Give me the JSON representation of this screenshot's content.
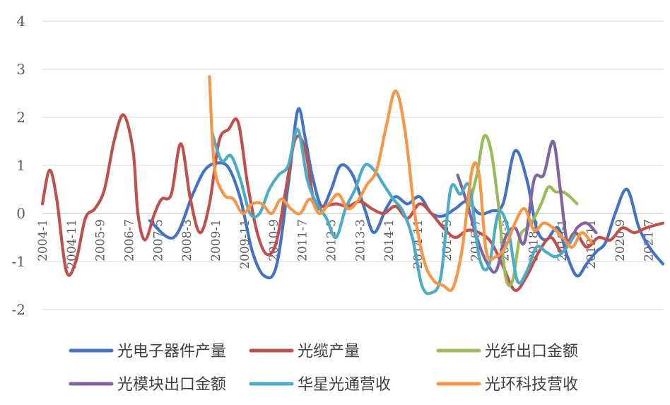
{
  "chart_data": {
    "type": "line",
    "title": "",
    "xlabel": "",
    "ylabel": "",
    "ylim": [
      -2,
      4
    ],
    "yticks": [
      -2,
      -1,
      0,
      1,
      2,
      3,
      4
    ],
    "grid": "horizontal",
    "legend_position": "bottom",
    "x_tick_labels": [
      "2004-1",
      "2004-11",
      "2005-9",
      "2006-7",
      "2007-5",
      "2008-3",
      "2009-1",
      "2009-11",
      "2010-9",
      "2011-7",
      "2012-5",
      "2013-3",
      "2014-1",
      "2014-11",
      "2015-9",
      "2016-7",
      "2017-5",
      "2018-3",
      "2019-1",
      "2019-11",
      "2020-9",
      "2021-7"
    ],
    "series": [
      {
        "name": "光电子器件产量",
        "color": "#4472c4",
        "points": [
          [
            4.5,
            -0.15
          ],
          [
            5.5,
            -0.5
          ],
          [
            6.3,
            0.4
          ],
          [
            6.8,
            0.9
          ],
          [
            7.3,
            1.05
          ],
          [
            7.8,
            0.95
          ],
          [
            8.3,
            0.3
          ],
          [
            8.8,
            -0.8
          ],
          [
            9.3,
            -1.3
          ],
          [
            9.8,
            -1.1
          ],
          [
            10.3,
            0.6
          ],
          [
            10.7,
            2.15
          ],
          [
            11,
            1.6
          ],
          [
            11.3,
            0.8
          ],
          [
            11.7,
            0.15
          ],
          [
            12.1,
            0.5
          ],
          [
            12.5,
            1.0
          ],
          [
            13.0,
            0.8
          ],
          [
            13.5,
            0.1
          ],
          [
            13.9,
            -0.4
          ],
          [
            14.4,
            0.1
          ],
          [
            14.8,
            0.35
          ],
          [
            15.3,
            0.2
          ],
          [
            15.8,
            0.35
          ],
          [
            16.3,
            0.0
          ],
          [
            16.8,
            -0.05
          ],
          [
            17.3,
            0.1
          ],
          [
            17.8,
            0.25
          ],
          [
            18.3,
            0.0
          ],
          [
            18.8,
            0.05
          ],
          [
            19.3,
            0.2
          ],
          [
            19.8,
            1.3
          ],
          [
            20.3,
            0.7
          ],
          [
            20.7,
            -0.3
          ],
          [
            21.1,
            -0.55
          ],
          [
            21.6,
            -0.3
          ],
          [
            22.0,
            -0.9
          ],
          [
            22.4,
            -1.3
          ],
          [
            22.8,
            -1.05
          ],
          [
            23.2,
            -0.8
          ],
          [
            23.6,
            -0.6
          ],
          [
            24.0,
            0.0
          ],
          [
            24.5,
            0.5
          ],
          [
            25.0,
            -0.3
          ],
          [
            25.5,
            -0.75
          ],
          [
            26.0,
            -1.05
          ]
        ]
      },
      {
        "name": "光缆产量",
        "color": "#c0504d",
        "points": [
          [
            0,
            0.2
          ],
          [
            0.3,
            0.9
          ],
          [
            0.6,
            0.3
          ],
          [
            1.0,
            -1.2
          ],
          [
            1.4,
            -1.0
          ],
          [
            1.8,
            -0.1
          ],
          [
            2.2,
            0.1
          ],
          [
            2.6,
            0.5
          ],
          [
            3.0,
            1.5
          ],
          [
            3.4,
            2.05
          ],
          [
            3.8,
            1.3
          ],
          [
            4.0,
            0.0
          ],
          [
            4.3,
            -0.55
          ],
          [
            4.7,
            0.0
          ],
          [
            5.0,
            0.3
          ],
          [
            5.4,
            0.4
          ],
          [
            5.8,
            1.45
          ],
          [
            6.2,
            0.3
          ],
          [
            6.6,
            -0.4
          ],
          [
            7.0,
            0.2
          ],
          [
            7.4,
            1.5
          ],
          [
            7.8,
            1.75
          ],
          [
            8.2,
            1.9
          ],
          [
            8.6,
            0.6
          ],
          [
            9.0,
            -0.4
          ],
          [
            9.4,
            -0.85
          ],
          [
            9.8,
            -0.6
          ],
          [
            10.2,
            0.5
          ],
          [
            10.6,
            1.55
          ],
          [
            11.0,
            1.35
          ],
          [
            11.4,
            0.2
          ],
          [
            11.8,
            0.15
          ],
          [
            12.3,
            0.2
          ],
          [
            12.8,
            0.15
          ],
          [
            13.3,
            0.25
          ],
          [
            13.8,
            0.1
          ],
          [
            14.3,
            0.0
          ],
          [
            14.8,
            0.15
          ],
          [
            15.3,
            -0.1
          ],
          [
            15.8,
            0.2
          ],
          [
            16.3,
            0.0
          ],
          [
            16.8,
            -0.3
          ],
          [
            17.3,
            -0.5
          ],
          [
            17.8,
            -0.35
          ],
          [
            18.3,
            -0.4
          ],
          [
            18.8,
            -0.6
          ],
          [
            19.3,
            -1.1
          ],
          [
            19.8,
            -1.6
          ],
          [
            20.3,
            -1.3
          ],
          [
            20.8,
            -0.8
          ],
          [
            21.3,
            -0.5
          ],
          [
            21.8,
            -0.8
          ],
          [
            22.3,
            -0.4
          ],
          [
            22.8,
            -0.7
          ],
          [
            23.3,
            -0.5
          ],
          [
            23.8,
            -0.55
          ],
          [
            24.3,
            -0.3
          ],
          [
            24.8,
            -0.4
          ],
          [
            25.3,
            -0.3
          ],
          [
            26.0,
            -0.2
          ]
        ]
      },
      {
        "name": "光纤出口金额",
        "color": "#9bbb59",
        "points": [
          [
            17.8,
            0.0
          ],
          [
            18.2,
            0.8
          ],
          [
            18.5,
            1.6
          ],
          [
            18.8,
            1.3
          ],
          [
            19.1,
            0.2
          ],
          [
            19.4,
            -1.3
          ],
          [
            19.7,
            -1.4
          ],
          [
            20.0,
            -0.5
          ],
          [
            20.3,
            -0.3
          ],
          [
            20.6,
            -0.1
          ],
          [
            20.9,
            0.2
          ],
          [
            21.2,
            0.55
          ],
          [
            21.5,
            0.45
          ],
          [
            21.8,
            0.45
          ],
          [
            22.1,
            0.35
          ],
          [
            22.4,
            0.2
          ]
        ]
      },
      {
        "name": "光模块出口金额",
        "color": "#8064a2",
        "points": [
          [
            17.4,
            0.8
          ],
          [
            17.8,
            0.2
          ],
          [
            18.2,
            -0.5
          ],
          [
            18.6,
            -1.0
          ],
          [
            19.0,
            -1.2
          ],
          [
            19.4,
            -0.5
          ],
          [
            19.8,
            -0.3
          ],
          [
            20.2,
            -0.6
          ],
          [
            20.6,
            0.7
          ],
          [
            21.0,
            0.8
          ],
          [
            21.4,
            1.5
          ],
          [
            21.7,
            0.5
          ],
          [
            22.0,
            -0.6
          ],
          [
            22.4,
            -0.3
          ],
          [
            22.8,
            -0.2
          ],
          [
            23.2,
            -0.4
          ]
        ]
      },
      {
        "name": "华星光通营收",
        "color": "#4bacc6",
        "points": [
          [
            7.1,
            1.7
          ],
          [
            7.5,
            1.1
          ],
          [
            7.9,
            1.2
          ],
          [
            8.3,
            0.7
          ],
          [
            8.7,
            0.0
          ],
          [
            9.1,
            0.0
          ],
          [
            9.5,
            0.5
          ],
          [
            9.9,
            0.8
          ],
          [
            10.3,
            1.0
          ],
          [
            10.7,
            1.75
          ],
          [
            11.1,
            0.7
          ],
          [
            11.5,
            0.2
          ],
          [
            11.9,
            -0.1
          ],
          [
            12.3,
            -0.5
          ],
          [
            12.7,
            0.1
          ],
          [
            13.1,
            0.5
          ],
          [
            13.5,
            1.0
          ],
          [
            13.9,
            0.9
          ],
          [
            14.3,
            0.6
          ],
          [
            14.7,
            0.3
          ],
          [
            15.1,
            0.05
          ],
          [
            15.5,
            -0.5
          ],
          [
            15.9,
            -1.5
          ],
          [
            16.3,
            -1.65
          ],
          [
            16.7,
            -1.3
          ],
          [
            17.1,
            0.5
          ],
          [
            17.5,
            0.4
          ],
          [
            17.9,
            0.55
          ],
          [
            18.3,
            -0.9
          ],
          [
            18.7,
            -1.1
          ],
          [
            19.1,
            0.0
          ],
          [
            19.5,
            -0.3
          ],
          [
            19.9,
            -1.4
          ],
          [
            20.3,
            -1.2
          ],
          [
            20.7,
            -0.7
          ],
          [
            21.1,
            -0.8
          ],
          [
            21.5,
            -0.9
          ],
          [
            21.9,
            -0.75
          ],
          [
            22.3,
            -0.45
          ]
        ]
      },
      {
        "name": "光环科技营收",
        "color": "#f79646",
        "points": [
          [
            7.0,
            2.85
          ],
          [
            7.2,
            1.0
          ],
          [
            7.6,
            0.4
          ],
          [
            8.0,
            0.3
          ],
          [
            8.4,
            0.0
          ],
          [
            8.8,
            0.2
          ],
          [
            9.2,
            0.2
          ],
          [
            9.6,
            0.0
          ],
          [
            10.0,
            0.3
          ],
          [
            10.4,
            0.1
          ],
          [
            10.8,
            0.0
          ],
          [
            11.2,
            0.3
          ],
          [
            11.6,
            0.0
          ],
          [
            12.0,
            0.2
          ],
          [
            12.4,
            0.4
          ],
          [
            12.8,
            0.1
          ],
          [
            13.2,
            0.25
          ],
          [
            13.6,
            0.6
          ],
          [
            14.0,
            0.9
          ],
          [
            14.4,
            1.8
          ],
          [
            14.8,
            2.55
          ],
          [
            15.2,
            1.7
          ],
          [
            15.6,
            0.0
          ],
          [
            16.0,
            -1.0
          ],
          [
            16.4,
            -1.4
          ],
          [
            16.8,
            -1.5
          ],
          [
            17.2,
            -1.55
          ],
          [
            17.6,
            -0.7
          ],
          [
            18.0,
            0.9
          ],
          [
            18.3,
            0.8
          ],
          [
            18.6,
            -0.8
          ],
          [
            19.0,
            -0.9
          ],
          [
            19.4,
            -0.7
          ],
          [
            19.8,
            -0.2
          ],
          [
            20.2,
            0.1
          ],
          [
            20.6,
            -0.35
          ],
          [
            21.0,
            -0.2
          ],
          [
            21.4,
            -0.3
          ],
          [
            21.8,
            -0.5
          ],
          [
            22.2,
            -0.7
          ],
          [
            22.6,
            -0.4
          ],
          [
            23.0,
            -0.6
          ]
        ]
      }
    ]
  }
}
